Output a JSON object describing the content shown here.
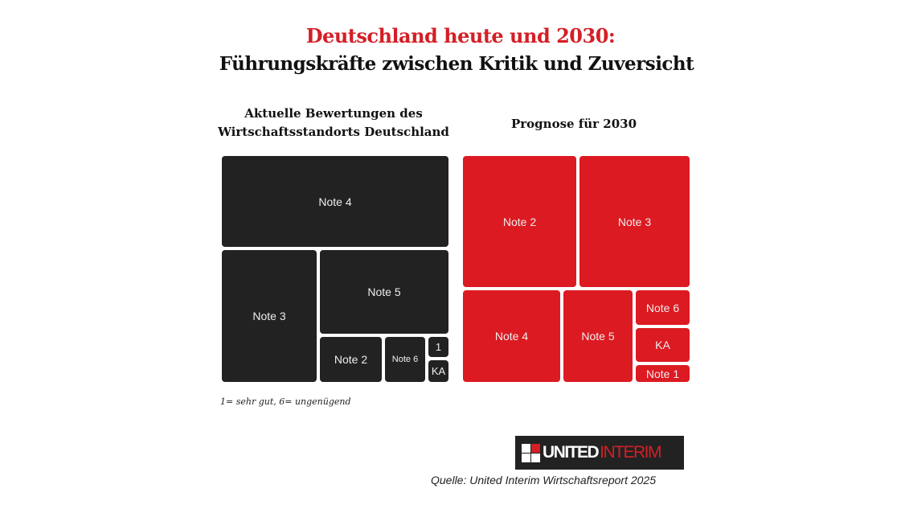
{
  "title": "Deutschland heute und 2030:",
  "subtitle": "Führungskräfte zwischen Kritik und Zuversicht",
  "chart_data": [
    {
      "type": "treemap",
      "title": "Aktuelle Bewertungen des Wirtschaftsstandorts Deutschland",
      "color": "#222222",
      "categories": [
        "Note 4",
        "Note 3",
        "Note 5",
        "Note 2",
        "Note 6",
        "1",
        "KA"
      ],
      "values_percent_estimated": [
        40,
        25,
        21,
        6,
        4,
        2,
        2
      ]
    },
    {
      "type": "treemap",
      "title": "Prognose für 2030",
      "color": "#dc1a22",
      "categories": [
        "Note 2",
        "Note 3",
        "Note 4",
        "Note 5",
        "Note 6",
        "KA",
        "Note 1"
      ],
      "values_percent_estimated": [
        29,
        29,
        18,
        13,
        4,
        4,
        2
      ]
    }
  ],
  "footnote": "1= sehr gut, 6= ungenügend",
  "logo": {
    "part1": "UNITED",
    "part2": "INTERIM"
  },
  "source": "Quelle: United Interim Wirtschaftsreport 2025"
}
